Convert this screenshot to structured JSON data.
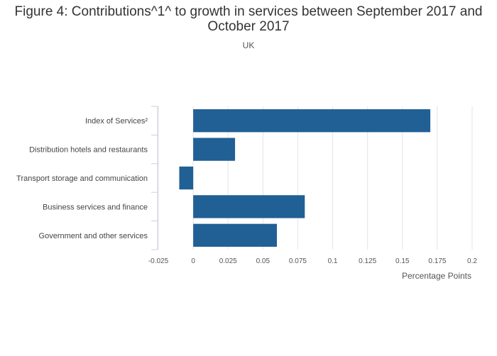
{
  "chart_data": {
    "type": "bar",
    "orientation": "horizontal",
    "title": "Figure 4: Contributions^1^ to growth in services between September 2017 and October 2017",
    "subtitle": "UK",
    "xlabel": "Percentage Points",
    "ylabel": "",
    "categories": [
      "Index of Services²",
      "Distribution hotels and restaurants",
      "Transport storage and communication",
      "Business services and finance",
      "Government and other services"
    ],
    "values": [
      0.17,
      0.03,
      -0.01,
      0.08,
      0.06
    ],
    "xlim": [
      -0.025,
      0.2
    ],
    "xticks": [
      "-0.025",
      "0",
      "0.025",
      "0.05",
      "0.075",
      "0.1",
      "0.125",
      "0.15",
      "0.175",
      "0.2"
    ],
    "grid": true,
    "legend": "none",
    "bar_color": "#206095"
  }
}
